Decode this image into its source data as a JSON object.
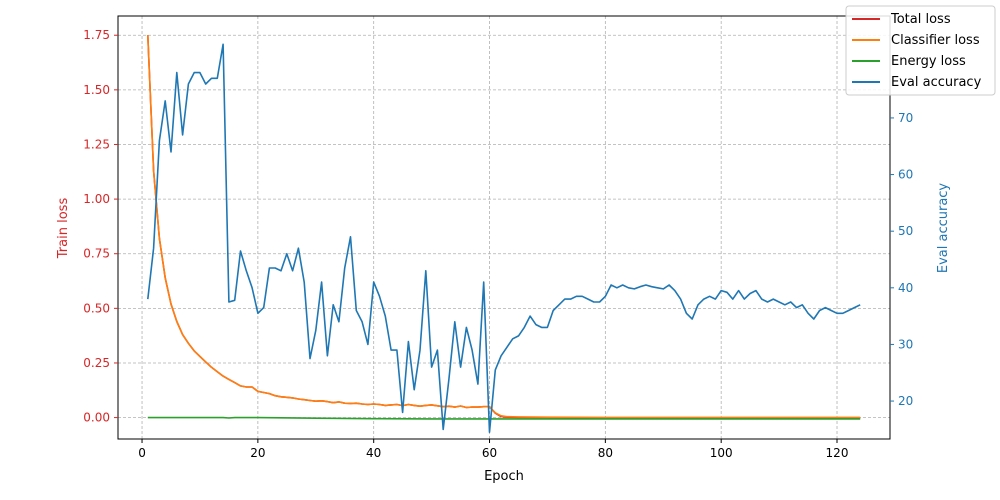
{
  "chart_data": {
    "type": "line",
    "xlabel": "Epoch",
    "ylabel_left": "Train loss",
    "ylabel_right": "Eval accuracy",
    "xlim": [
      -4.15,
      129.15
    ],
    "ylim_left": [
      -0.098,
      1.838
    ],
    "ylim_right": [
      13.3,
      88.0
    ],
    "x_ticks": [
      0,
      20,
      40,
      60,
      80,
      100,
      120
    ],
    "y_left_ticks": [
      0.0,
      0.25,
      0.5,
      0.75,
      1.0,
      1.25,
      1.5,
      1.75
    ],
    "y_left_tick_labels": [
      "0.00",
      "0.25",
      "0.50",
      "0.75",
      "1.00",
      "1.25",
      "1.50",
      "1.75"
    ],
    "y_right_ticks": [
      20,
      30,
      40,
      50,
      60,
      70
    ],
    "y_right_tick_labels": [
      "20",
      "30",
      "40",
      "50",
      "60",
      "70"
    ],
    "grid": true,
    "legend_position": "top-right",
    "colors": {
      "total": "#d62728",
      "classifier": "#ff7f0e",
      "energy": "#2ca02c",
      "eval": "#1f77b4",
      "left_axis_label": "#d62728",
      "right_axis_label": "#1f77b4"
    },
    "series": [
      {
        "name": "Total loss",
        "axis": "left",
        "color": "#d62728",
        "points": [
          [
            1,
            1.75
          ],
          [
            2,
            1.13
          ],
          [
            3,
            0.82
          ],
          [
            4,
            0.64
          ],
          [
            5,
            0.52
          ],
          [
            6,
            0.44
          ],
          [
            7,
            0.38
          ],
          [
            8,
            0.34
          ],
          [
            9,
            0.305
          ],
          [
            10,
            0.28
          ],
          [
            11,
            0.255
          ],
          [
            12,
            0.23
          ],
          [
            13,
            0.21
          ],
          [
            14,
            0.19
          ],
          [
            15,
            0.175
          ],
          [
            16,
            0.16
          ],
          [
            17,
            0.145
          ],
          [
            18,
            0.14
          ],
          [
            19,
            0.14
          ],
          [
            20,
            0.12
          ],
          [
            21,
            0.115
          ],
          [
            22,
            0.11
          ],
          [
            23,
            0.1
          ],
          [
            24,
            0.095
          ],
          [
            25,
            0.093
          ],
          [
            26,
            0.09
          ],
          [
            27,
            0.085
          ],
          [
            28,
            0.082
          ],
          [
            29,
            0.078
          ],
          [
            30,
            0.075
          ],
          [
            31,
            0.077
          ],
          [
            32,
            0.073
          ],
          [
            33,
            0.068
          ],
          [
            34,
            0.072
          ],
          [
            35,
            0.066
          ],
          [
            36,
            0.065
          ],
          [
            37,
            0.066
          ],
          [
            38,
            0.062
          ],
          [
            39,
            0.06
          ],
          [
            40,
            0.062
          ],
          [
            41,
            0.06
          ],
          [
            42,
            0.056
          ],
          [
            43,
            0.058
          ],
          [
            44,
            0.06
          ],
          [
            45,
            0.055
          ],
          [
            46,
            0.06
          ],
          [
            47,
            0.056
          ],
          [
            48,
            0.052
          ],
          [
            49,
            0.056
          ],
          [
            50,
            0.058
          ],
          [
            51,
            0.054
          ],
          [
            52,
            0.05
          ],
          [
            53,
            0.052
          ],
          [
            54,
            0.048
          ],
          [
            55,
            0.053
          ],
          [
            56,
            0.046
          ],
          [
            57,
            0.048
          ],
          [
            58,
            0.048
          ],
          [
            59,
            0.05
          ],
          [
            60,
            0.05
          ],
          [
            61,
            0.02
          ],
          [
            62,
            0.005
          ],
          [
            63,
            0.002
          ],
          [
            65,
            0.001
          ],
          [
            70,
            0.0
          ],
          [
            80,
            -0.002
          ],
          [
            90,
            -0.003
          ],
          [
            100,
            -0.003
          ],
          [
            110,
            -0.003
          ],
          [
            124,
            -0.003
          ]
        ]
      },
      {
        "name": "Classifier loss",
        "axis": "left",
        "color": "#ff7f0e",
        "points": [
          [
            1,
            1.75
          ],
          [
            2,
            1.13
          ],
          [
            3,
            0.82
          ],
          [
            4,
            0.64
          ],
          [
            5,
            0.52
          ],
          [
            6,
            0.44
          ],
          [
            7,
            0.38
          ],
          [
            8,
            0.34
          ],
          [
            9,
            0.305
          ],
          [
            10,
            0.28
          ],
          [
            11,
            0.255
          ],
          [
            12,
            0.23
          ],
          [
            13,
            0.21
          ],
          [
            14,
            0.19
          ],
          [
            15,
            0.175
          ],
          [
            16,
            0.16
          ],
          [
            17,
            0.145
          ],
          [
            18,
            0.14
          ],
          [
            19,
            0.14
          ],
          [
            20,
            0.12
          ],
          [
            21,
            0.115
          ],
          [
            22,
            0.11
          ],
          [
            23,
            0.1
          ],
          [
            24,
            0.095
          ],
          [
            25,
            0.093
          ],
          [
            26,
            0.09
          ],
          [
            27,
            0.085
          ],
          [
            28,
            0.082
          ],
          [
            29,
            0.078
          ],
          [
            30,
            0.075
          ],
          [
            31,
            0.077
          ],
          [
            32,
            0.073
          ],
          [
            33,
            0.068
          ],
          [
            34,
            0.072
          ],
          [
            35,
            0.066
          ],
          [
            36,
            0.065
          ],
          [
            37,
            0.066
          ],
          [
            38,
            0.062
          ],
          [
            39,
            0.06
          ],
          [
            40,
            0.062
          ],
          [
            41,
            0.06
          ],
          [
            42,
            0.056
          ],
          [
            43,
            0.058
          ],
          [
            44,
            0.06
          ],
          [
            45,
            0.055
          ],
          [
            46,
            0.06
          ],
          [
            47,
            0.056
          ],
          [
            48,
            0.052
          ],
          [
            49,
            0.056
          ],
          [
            50,
            0.058
          ],
          [
            51,
            0.054
          ],
          [
            52,
            0.05
          ],
          [
            53,
            0.052
          ],
          [
            54,
            0.048
          ],
          [
            55,
            0.053
          ],
          [
            56,
            0.046
          ],
          [
            57,
            0.048
          ],
          [
            58,
            0.048
          ],
          [
            59,
            0.05
          ],
          [
            60,
            0.05
          ],
          [
            61,
            0.022
          ],
          [
            62,
            0.008
          ],
          [
            63,
            0.004
          ],
          [
            65,
            0.003
          ],
          [
            70,
            0.002
          ],
          [
            80,
            0.001
          ],
          [
            90,
            0.001
          ],
          [
            100,
            0.001
          ],
          [
            110,
            0.001
          ],
          [
            124,
            0.001
          ]
        ]
      },
      {
        "name": "Energy loss",
        "axis": "left",
        "color": "#2ca02c",
        "points": [
          [
            1,
            0.0
          ],
          [
            10,
            0.0
          ],
          [
            14,
            0.0
          ],
          [
            15,
            -0.002
          ],
          [
            16,
            0.0
          ],
          [
            20,
            0.0
          ],
          [
            30,
            -0.003
          ],
          [
            40,
            -0.005
          ],
          [
            50,
            -0.006
          ],
          [
            60,
            -0.006
          ],
          [
            70,
            -0.006
          ],
          [
            80,
            -0.006
          ],
          [
            90,
            -0.006
          ],
          [
            100,
            -0.006
          ],
          [
            110,
            -0.006
          ],
          [
            124,
            -0.006
          ]
        ]
      },
      {
        "name": "Eval accuracy",
        "axis": "right",
        "color": "#1f77b4",
        "points": [
          [
            1,
            38
          ],
          [
            2,
            47
          ],
          [
            3,
            66
          ],
          [
            4,
            73
          ],
          [
            5,
            64
          ],
          [
            6,
            78
          ],
          [
            7,
            67
          ],
          [
            8,
            76
          ],
          [
            9,
            78
          ],
          [
            10,
            78
          ],
          [
            11,
            76
          ],
          [
            12,
            77
          ],
          [
            13,
            77
          ],
          [
            14,
            83
          ],
          [
            15,
            37.5
          ],
          [
            16,
            37.8
          ],
          [
            17,
            46.5
          ],
          [
            18,
            43
          ],
          [
            19,
            40
          ],
          [
            20,
            35.5
          ],
          [
            21,
            36.5
          ],
          [
            22,
            43.5
          ],
          [
            23,
            43.5
          ],
          [
            24,
            43
          ],
          [
            25,
            46
          ],
          [
            26,
            43
          ],
          [
            27,
            47
          ],
          [
            28,
            41
          ],
          [
            29,
            27.5
          ],
          [
            30,
            32.5
          ],
          [
            31,
            41
          ],
          [
            32,
            28
          ],
          [
            33,
            37
          ],
          [
            34,
            34
          ],
          [
            35,
            43.5
          ],
          [
            36,
            49
          ],
          [
            37,
            36
          ],
          [
            38,
            34
          ],
          [
            39,
            30
          ],
          [
            40,
            41
          ],
          [
            41,
            38.5
          ],
          [
            42,
            35
          ],
          [
            43,
            29
          ],
          [
            44,
            29
          ],
          [
            45,
            18
          ],
          [
            46,
            30.5
          ],
          [
            47,
            22
          ],
          [
            48,
            29
          ],
          [
            49,
            43
          ],
          [
            50,
            26
          ],
          [
            51,
            29
          ],
          [
            52,
            15
          ],
          [
            53,
            24
          ],
          [
            54,
            34
          ],
          [
            55,
            26
          ],
          [
            56,
            33
          ],
          [
            57,
            29
          ],
          [
            58,
            23
          ],
          [
            59,
            41
          ],
          [
            60,
            14.5
          ],
          [
            61,
            25.5
          ],
          [
            62,
            28
          ],
          [
            63,
            29.5
          ],
          [
            64,
            31
          ],
          [
            65,
            31.5
          ],
          [
            66,
            33
          ],
          [
            67,
            35
          ],
          [
            68,
            33.5
          ],
          [
            69,
            33
          ],
          [
            70,
            33
          ],
          [
            71,
            36
          ],
          [
            72,
            37
          ],
          [
            73,
            38
          ],
          [
            74,
            38
          ],
          [
            75,
            38.5
          ],
          [
            76,
            38.5
          ],
          [
            77,
            38
          ],
          [
            78,
            37.5
          ],
          [
            79,
            37.5
          ],
          [
            80,
            38.5
          ],
          [
            81,
            40.5
          ],
          [
            82,
            40
          ],
          [
            83,
            40.5
          ],
          [
            84,
            40
          ],
          [
            85,
            39.8
          ],
          [
            86,
            40.2
          ],
          [
            87,
            40.5
          ],
          [
            88,
            40.2
          ],
          [
            89,
            40
          ],
          [
            90,
            39.8
          ],
          [
            91,
            40.5
          ],
          [
            92,
            39.5
          ],
          [
            93,
            38
          ],
          [
            94,
            35.5
          ],
          [
            95,
            34.5
          ],
          [
            96,
            37
          ],
          [
            97,
            38
          ],
          [
            98,
            38.5
          ],
          [
            99,
            38
          ],
          [
            100,
            39.5
          ],
          [
            101,
            39.2
          ],
          [
            102,
            38
          ],
          [
            103,
            39.5
          ],
          [
            104,
            38
          ],
          [
            105,
            39
          ],
          [
            106,
            39.5
          ],
          [
            107,
            38
          ],
          [
            108,
            37.5
          ],
          [
            109,
            38
          ],
          [
            110,
            37.5
          ],
          [
            111,
            37
          ],
          [
            112,
            37.5
          ],
          [
            113,
            36.5
          ],
          [
            114,
            37
          ],
          [
            115,
            35.5
          ],
          [
            116,
            34.5
          ],
          [
            117,
            36
          ],
          [
            118,
            36.5
          ],
          [
            119,
            36
          ],
          [
            120,
            35.5
          ],
          [
            121,
            35.5
          ],
          [
            122,
            36
          ],
          [
            123,
            36.5
          ],
          [
            124,
            37
          ]
        ]
      }
    ]
  }
}
